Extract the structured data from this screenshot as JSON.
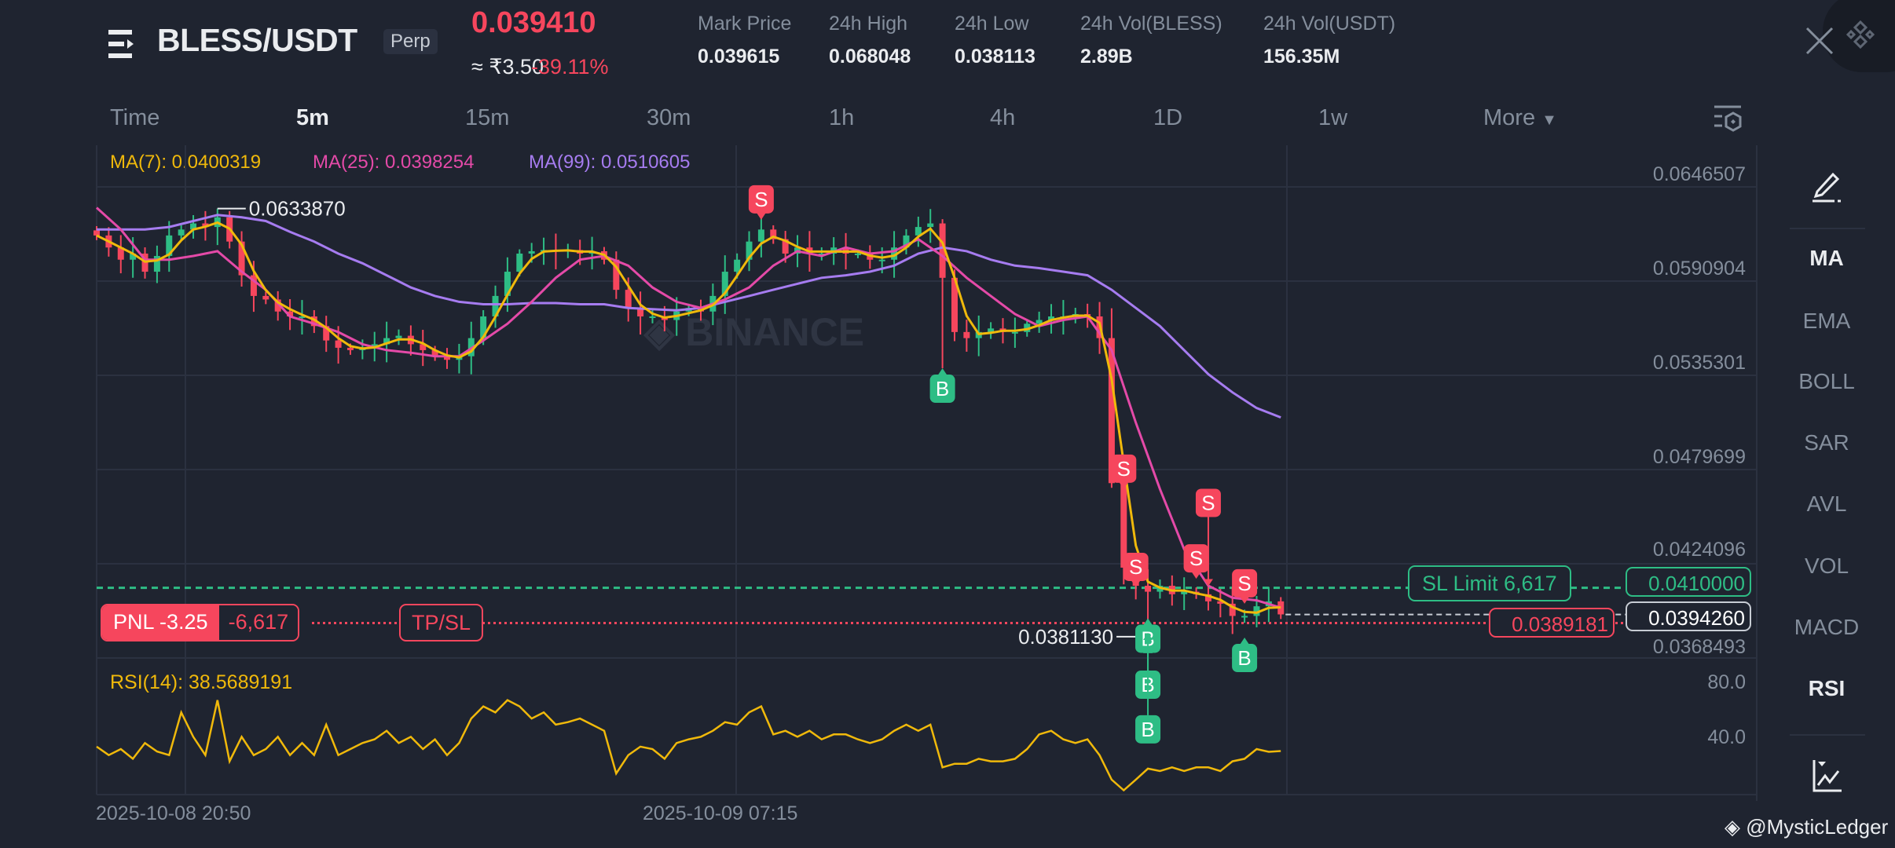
{
  "header": {
    "symbol": "BLESS/USDT",
    "contract_badge": "Perp",
    "last_price": "0.039410",
    "fiat_price": "≈ ₹3.50",
    "change_pct": "-39.11%",
    "stats": [
      {
        "label": "Mark Price",
        "value": "0.039615"
      },
      {
        "label": "24h High",
        "value": "0.068048"
      },
      {
        "label": "24h Low",
        "value": "0.038113"
      },
      {
        "label": "24h Vol(BLESS)",
        "value": "2.89B"
      },
      {
        "label": "24h Vol(USDT)",
        "value": "156.35M"
      }
    ]
  },
  "timeframes": {
    "items": [
      "Time",
      "5m",
      "15m",
      "30m",
      "1h",
      "4h",
      "1D",
      "1w",
      "More"
    ],
    "active": "5m"
  },
  "indicators_legend": {
    "ma7": "MA(7): 0.0400319",
    "ma25": "MA(25): 0.0398254",
    "ma99": "MA(99): 0.0510605",
    "rsi": "RSI(14): 38.5689191"
  },
  "price_axis": [
    "0.0646507",
    "0.0590904",
    "0.0535301",
    "0.0479699",
    "0.0424096",
    "0.0368493"
  ],
  "rsi_axis": [
    "80.0",
    "40.0"
  ],
  "time_axis": [
    "2025-10-08 20:50",
    "2025-10-09 07:15"
  ],
  "sidebar": {
    "items": [
      "MA",
      "EMA",
      "BOLL",
      "SAR",
      "AVL",
      "VOL",
      "MACD",
      "RSI"
    ],
    "active": [
      "MA",
      "RSI"
    ]
  },
  "position": {
    "pnl_label": "PNL -3.25",
    "quantity": "-6,617",
    "tpsl_label": "TP/SL",
    "sl_limit_label": "SL Limit  6,617",
    "sl_price": "0.0410000",
    "current_price": "0.0394260",
    "entry_price": "0.0389181"
  },
  "watermark": {
    "brand": "BINANCE",
    "credit": "@MysticLedger"
  },
  "colors": {
    "up": "#2ebd85",
    "down": "#f6465d",
    "ma7": "#f0b90b",
    "ma25": "#e44aa8",
    "ma99": "#a67cf0",
    "rsi": "#f0b90b"
  },
  "chart_data": {
    "type": "candlestick",
    "interval": "5m",
    "closes": [
      0.0618,
      0.06109,
      0.06037,
      0.06073,
      0.05966,
      0.06059,
      0.0618,
      0.06215,
      0.06251,
      0.0623,
      0.06287,
      0.06144,
      0.05945,
      0.05823,
      0.05802,
      0.05731,
      0.05702,
      0.05702,
      0.05645,
      0.0556,
      0.05517,
      0.05503,
      0.05517,
      0.05538,
      0.05574,
      0.05588,
      0.05538,
      0.05503,
      0.05467,
      0.05446,
      0.05467,
      0.05574,
      0.05702,
      0.05823,
      0.05966,
      0.06073,
      0.06087,
      0.06094,
      0.06087,
      0.06094,
      0.06073,
      0.06087,
      0.06037,
      0.05859,
      0.05752,
      0.05702,
      0.05702,
      0.05681,
      0.05731,
      0.05752,
      0.05731,
      0.05823,
      0.05966,
      0.06037,
      0.06144,
      0.06215,
      0.06158,
      0.06073,
      0.06109,
      0.06073,
      0.06073,
      0.06109,
      0.06073,
      0.06073,
      0.06037,
      0.06037,
      0.06109,
      0.0618,
      0.0623,
      0.06251,
      0.0593,
      0.0561,
      0.05574,
      0.0561,
      0.05631,
      0.0561,
      0.0561,
      0.05659,
      0.05681,
      0.05702,
      0.05702,
      0.05716,
      0.05702,
      0.05574,
      0.04718,
      0.04219,
      0.04112,
      0.04077,
      0.04112,
      0.04062,
      0.04077,
      0.04062,
      0.0402,
      0.04006,
      0.03934,
      0.03934,
      0.03991,
      0.0402,
      0.03943
    ],
    "ma25_every_2": [
      0.06344,
      0.06215,
      0.06037,
      0.06037,
      0.06059,
      0.06087,
      0.05966,
      0.05859,
      0.05702,
      0.05659,
      0.0561,
      0.05538,
      0.05503,
      0.05488,
      0.05467,
      0.05467,
      0.0556,
      0.05659,
      0.05788,
      0.0593,
      0.06037,
      0.06059,
      0.06002,
      0.05873,
      0.05788,
      0.05752,
      0.05802,
      0.05873,
      0.06002,
      0.06087,
      0.06059,
      0.06109,
      0.06073,
      0.06087,
      0.06158,
      0.06059,
      0.0593,
      0.05823,
      0.05716,
      0.05645,
      0.05681,
      0.05702,
      0.05503,
      0.05075,
      0.04683,
      0.04327,
      0.04112,
      0.04041,
      0.04026,
      0.03983
    ],
    "ma99_every_2": [
      0.06215,
      0.06215,
      0.06215,
      0.0623,
      0.06265,
      0.06301,
      0.06287,
      0.06265,
      0.06201,
      0.06144,
      0.06073,
      0.06016,
      0.05945,
      0.05873,
      0.05823,
      0.05788,
      0.05774,
      0.05774,
      0.05781,
      0.05781,
      0.05774,
      0.05774,
      0.05752,
      0.05745,
      0.05738,
      0.05752,
      0.05788,
      0.05823,
      0.05859,
      0.05895,
      0.0593,
      0.05945,
      0.05966,
      0.06002,
      0.06073,
      0.06109,
      0.06087,
      0.06037,
      0.06002,
      0.05987,
      0.05966,
      0.05945,
      0.05859,
      0.05752,
      0.05645,
      0.05503,
      0.05361,
      0.05254,
      0.05161,
      0.05106
    ],
    "rsi": [
      41.8,
      35.6,
      40.0,
      32.9,
      44.4,
      38.2,
      35.6,
      66.7,
      48.9,
      35.6,
      75.6,
      31.1,
      48.9,
      35.6,
      40.0,
      48.9,
      35.6,
      44.4,
      35.6,
      57.8,
      35.6,
      40.0,
      44.4,
      47.1,
      53.3,
      44.4,
      48.9,
      40.0,
      47.1,
      35.6,
      44.4,
      62.2,
      71.1,
      66.7,
      75.6,
      71.1,
      62.2,
      66.7,
      57.8,
      59.6,
      62.2,
      57.8,
      53.3,
      22.2,
      35.6,
      41.8,
      40.0,
      32.9,
      44.4,
      47.1,
      48.9,
      53.3,
      59.6,
      57.8,
      66.7,
      71.1,
      50.7,
      53.3,
      48.9,
      53.3,
      47.1,
      50.7,
      50.7,
      47.1,
      44.4,
      47.1,
      53.3,
      57.8,
      53.3,
      57.8,
      26.7,
      29.3,
      29.3,
      32.9,
      31.1,
      31.1,
      32.9,
      40.0,
      50.7,
      53.3,
      47.1,
      44.4,
      47.1,
      35.6,
      17.8,
      10.0,
      17.8,
      25.8,
      24.0,
      26.7,
      24.0,
      26.7,
      26.7,
      24.0,
      31.1,
      32.9,
      40.0,
      38.0,
      38.6
    ],
    "high_label": {
      "index": 10,
      "value": "0.0633870",
      "price": 0.063387
    },
    "low_label": {
      "index": 87,
      "value": "0.0381130",
      "price": 0.038113
    },
    "trades": [
      {
        "side": "S",
        "index": 55,
        "price": 0.06273
      },
      {
        "side": "B",
        "index": 70,
        "price": 0.05396
      },
      {
        "side": "S",
        "index": 85,
        "price": 0.04683
      },
      {
        "side": "S",
        "index": 86,
        "price": 0.04103
      },
      {
        "side": "B",
        "index": 87,
        "price": 0.0392
      },
      {
        "side": "B",
        "index": 87,
        "price": 0.03834
      },
      {
        "side": "B",
        "index": 87,
        "price": 0.03756
      },
      {
        "side": "S",
        "index": 91,
        "price": 0.04153
      },
      {
        "side": "S",
        "index": 92,
        "price": 0.0411
      },
      {
        "side": "S",
        "index": 95,
        "price": 0.04006
      },
      {
        "side": "B",
        "index": 95,
        "price": 0.03806
      }
    ]
  }
}
